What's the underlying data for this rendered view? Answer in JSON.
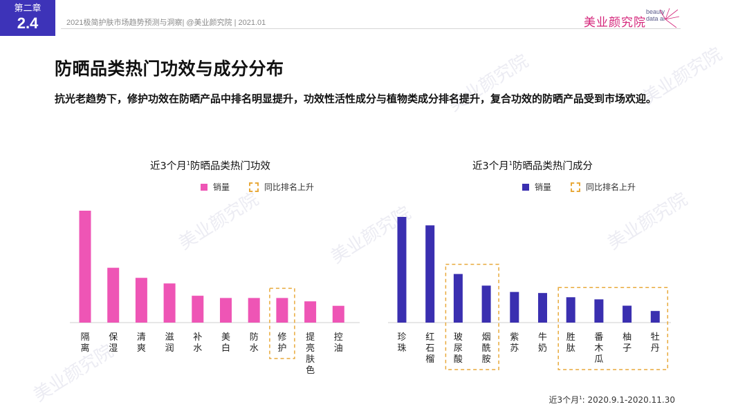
{
  "badge": {
    "chapter": "第二章",
    "number": "2.4"
  },
  "header": {
    "report_line": "2021极简护肤市场趋势预测与洞察| @美业颜究院 | 2021.01"
  },
  "logo": {
    "text": "美业颜究院",
    "en_line1": "beauty",
    "en_line2": "data ai"
  },
  "page_title": "防晒品类热门功效与成分分布",
  "subtitle": "抗光老趋势下，修护功效在防晒产品中排名明显提升，功效性活性成分与植物类成分排名提升，复合功效的防晒产品受到市场欢迎。",
  "watermark": "美业颜究院",
  "legend": {
    "sales": "销量",
    "rank_up": "同比排名上升"
  },
  "chart_data": [
    {
      "type": "bar",
      "title_main": "近3个月",
      "title_sup": "1",
      "title_rest": "防晒品类热门功效",
      "categories": [
        "隔离",
        "保湿",
        "清爽",
        "滋润",
        "补水",
        "美白",
        "防水",
        "修护",
        "提亮肤色",
        "控油"
      ],
      "category_lines": [
        [
          "隔",
          "离"
        ],
        [
          "保",
          "湿"
        ],
        [
          "清",
          "爽"
        ],
        [
          "滋",
          "润"
        ],
        [
          "补",
          "水"
        ],
        [
          "美",
          "白"
        ],
        [
          "防",
          "水"
        ],
        [
          "修",
          "护"
        ],
        [
          "提",
          "亮",
          "肤",
          "色"
        ],
        [
          "控",
          "油"
        ]
      ],
      "series": [
        {
          "name": "销量",
          "color": "#ee55b5",
          "values": [
            100,
            49,
            40,
            35,
            24,
            22,
            22,
            22,
            19,
            15
          ]
        }
      ],
      "highlight_groups": [
        [
          7,
          7
        ]
      ],
      "ylim": [
        0,
        100
      ],
      "grid": false
    },
    {
      "type": "bar",
      "title_main": "近3个月",
      "title_sup": "1",
      "title_rest": "防晒品类热门成分",
      "categories": [
        "珍珠",
        "红石榴",
        "玻尿酸",
        "烟酰胺",
        "紫苏",
        "牛奶",
        "胜肽",
        "番木瓜",
        "柚子",
        "牡丹"
      ],
      "category_lines": [
        [
          "珍",
          "珠"
        ],
        [
          "红",
          "石",
          "榴"
        ],
        [
          "玻",
          "尿",
          "酸"
        ],
        [
          "烟",
          "酰",
          "胺"
        ],
        [
          "紫",
          "苏"
        ],
        [
          "牛",
          "奶"
        ],
        [
          "胜",
          "肽"
        ],
        [
          "番",
          "木",
          "瓜"
        ],
        [
          "柚",
          "子"
        ],
        [
          "牡",
          "丹"
        ]
      ],
      "series": [
        {
          "name": "销量",
          "color": "#3a2fb0",
          "values": [
            100,
            92,
            46,
            35,
            29,
            28,
            24,
            22,
            16,
            11
          ]
        }
      ],
      "highlight_groups": [
        [
          2,
          3
        ],
        [
          6,
          9
        ]
      ],
      "ylim": [
        0,
        100
      ],
      "grid": false
    }
  ],
  "footnote": {
    "prefix": "近3个月",
    "sup": "1",
    "rest": ": 2020.9.1-2020.11.30"
  },
  "colors": {
    "accent": "#3d33b8",
    "pink": "#ee55b5",
    "indigo": "#3a2fb0",
    "highlight": "#e8a93a"
  }
}
